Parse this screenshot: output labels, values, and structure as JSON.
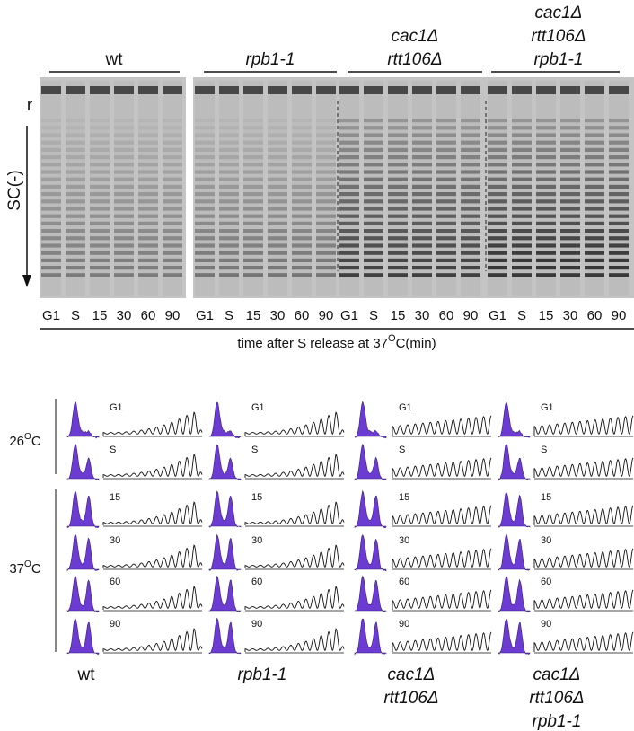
{
  "gel": {
    "marker": "r",
    "ylabel": "SC(-)",
    "xlabel": {
      "before": "time after S release at 37",
      "sup": "O",
      "after": "C(min)"
    },
    "groups": [
      {
        "label": [
          "wt"
        ],
        "lanes": [
          "G1",
          "S",
          "15",
          "30",
          "60",
          "90"
        ]
      },
      {
        "label": [
          "rpb1-1"
        ],
        "lanes": [
          "G1",
          "S",
          "15",
          "30",
          "60",
          "90"
        ]
      },
      {
        "label": [
          "cac1Δ",
          "rtt106Δ"
        ],
        "lanes": [
          "G1",
          "S",
          "15",
          "30",
          "60",
          "90"
        ]
      },
      {
        "label": [
          "cac1Δ",
          "rtt106Δ",
          "rpb1-1"
        ],
        "lanes": [
          "G1",
          "S",
          "15",
          "30",
          "60",
          "90"
        ]
      }
    ]
  },
  "flow": {
    "conditions": [
      {
        "number": "26",
        "sup": "O",
        "unit": "C"
      },
      {
        "number": "37",
        "sup": "O",
        "unit": "C"
      }
    ],
    "columns": [
      {
        "label": [
          "wt"
        ],
        "times": [
          "G1",
          "S",
          "15",
          "30",
          "60",
          "90"
        ]
      },
      {
        "label": [
          "rpb1-1"
        ],
        "times": [
          "G1",
          "S",
          "15",
          "30",
          "60",
          "90"
        ]
      },
      {
        "label": [
          "cac1Δ",
          "rtt106Δ"
        ],
        "times": [
          "G1",
          "S",
          "15",
          "30",
          "60",
          "90"
        ]
      },
      {
        "label": [
          "cac1Δ",
          "rtt106Δ",
          "rpb1-1"
        ],
        "times": [
          "G1",
          "S",
          "15",
          "30",
          "60",
          "90"
        ]
      }
    ]
  }
}
